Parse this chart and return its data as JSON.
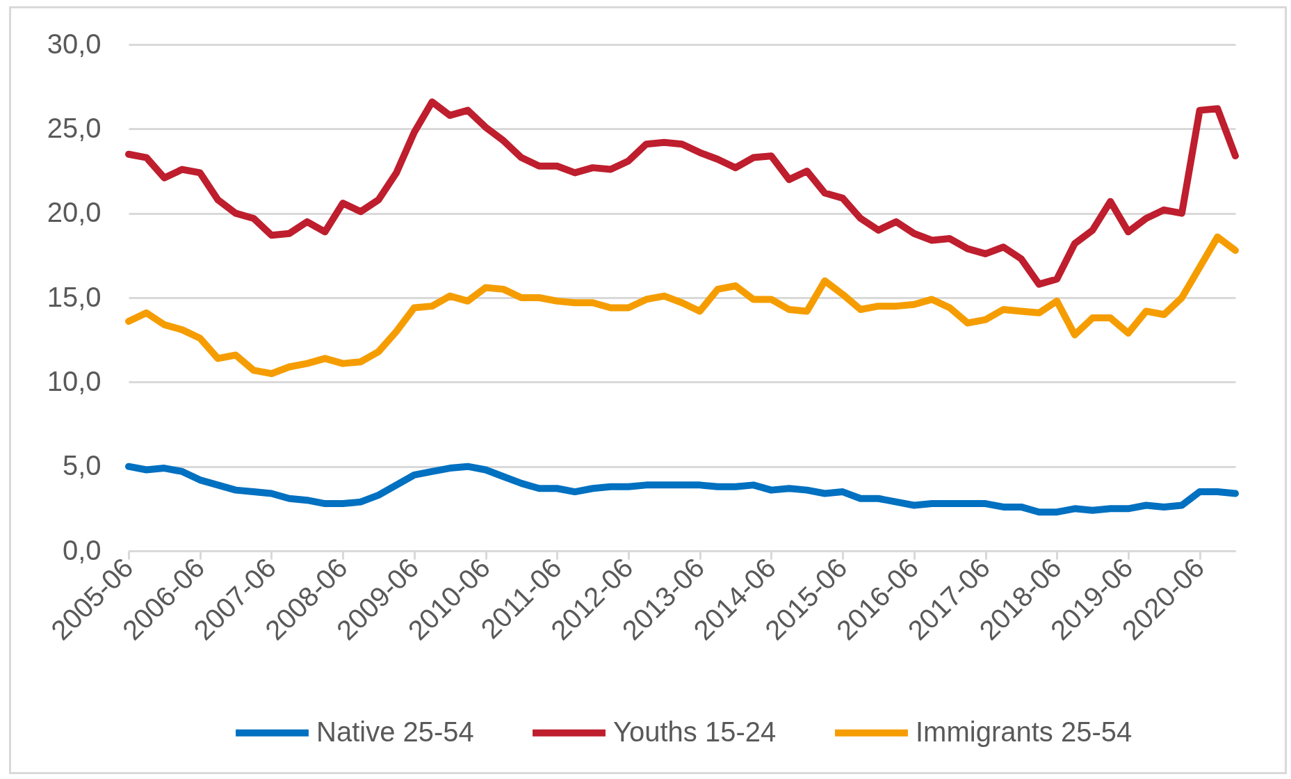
{
  "chart_data": {
    "type": "line",
    "categories": [
      "2005-06",
      null,
      null,
      null,
      "2006-06",
      null,
      null,
      null,
      "2007-06",
      null,
      null,
      null,
      "2008-06",
      null,
      null,
      null,
      "2009-06",
      null,
      null,
      null,
      "2010-06",
      null,
      null,
      null,
      "2011-06",
      null,
      null,
      null,
      "2012-06",
      null,
      null,
      null,
      "2013-06",
      null,
      null,
      null,
      "2014-06",
      null,
      null,
      null,
      "2015-06",
      null,
      null,
      null,
      "2016-06",
      null,
      null,
      null,
      "2017-06",
      null,
      null,
      null,
      "2018-06",
      null,
      null,
      null,
      "2019-06",
      null,
      null,
      null,
      "2020-06",
      null,
      null
    ],
    "series": [
      {
        "name": "Native 25-54",
        "color": "#0070c0",
        "values": [
          5.0,
          4.8,
          4.9,
          4.7,
          4.2,
          3.9,
          3.6,
          3.5,
          3.4,
          3.1,
          3.0,
          2.8,
          2.8,
          2.9,
          3.3,
          3.9,
          4.5,
          4.7,
          4.9,
          5.0,
          4.8,
          4.4,
          4.0,
          3.7,
          3.7,
          3.5,
          3.7,
          3.8,
          3.8,
          3.9,
          3.9,
          3.9,
          3.9,
          3.8,
          3.8,
          3.9,
          3.6,
          3.7,
          3.6,
          3.4,
          3.5,
          3.1,
          3.1,
          2.9,
          2.7,
          2.8,
          2.8,
          2.8,
          2.8,
          2.6,
          2.6,
          2.3,
          2.3,
          2.5,
          2.4,
          2.5,
          2.5,
          2.7,
          2.6,
          2.7,
          3.5,
          3.5,
          3.4
        ]
      },
      {
        "name": "Youths 15-24",
        "color": "#be1e2d",
        "values": [
          23.5,
          23.3,
          22.1,
          22.6,
          22.4,
          20.8,
          20.0,
          19.7,
          18.7,
          18.8,
          19.5,
          18.9,
          20.6,
          20.1,
          20.8,
          22.4,
          24.8,
          26.6,
          25.8,
          26.1,
          25.1,
          24.3,
          23.3,
          22.8,
          22.8,
          22.4,
          22.7,
          22.6,
          23.1,
          24.1,
          24.2,
          24.1,
          23.6,
          23.2,
          22.7,
          23.3,
          23.4,
          22.0,
          22.5,
          21.2,
          20.9,
          19.7,
          19.0,
          19.5,
          18.8,
          18.4,
          18.5,
          17.9,
          17.6,
          18.0,
          17.3,
          15.8,
          16.1,
          18.2,
          19.0,
          20.7,
          18.9,
          19.7,
          20.2,
          20.0,
          26.1,
          26.2,
          23.4
        ]
      },
      {
        "name": "Immigrants 25-54",
        "color": "#f59d00",
        "values": [
          13.6,
          14.1,
          13.4,
          13.1,
          12.6,
          11.4,
          11.6,
          10.7,
          10.5,
          10.9,
          11.1,
          11.4,
          11.1,
          11.2,
          11.8,
          13.0,
          14.4,
          14.5,
          15.1,
          14.8,
          15.6,
          15.5,
          15.0,
          15.0,
          14.8,
          14.7,
          14.7,
          14.4,
          14.4,
          14.9,
          15.1,
          14.7,
          14.2,
          15.5,
          15.7,
          14.9,
          14.9,
          14.3,
          14.2,
          16.0,
          15.2,
          14.3,
          14.5,
          14.5,
          14.6,
          14.9,
          14.4,
          13.5,
          13.7,
          14.3,
          14.2,
          14.1,
          14.8,
          12.8,
          13.8,
          13.8,
          12.9,
          14.2,
          14.0,
          15.0,
          16.8,
          18.6,
          17.8
        ]
      }
    ],
    "ylim": [
      0,
      30
    ],
    "yticks": [
      {
        "value": 0,
        "label": "0,0"
      },
      {
        "value": 5,
        "label": "5,0"
      },
      {
        "value": 10,
        "label": "10,0"
      },
      {
        "value": 15,
        "label": "15,0"
      },
      {
        "value": 20,
        "label": "20,0"
      },
      {
        "value": 25,
        "label": "25,0"
      },
      {
        "value": 30,
        "label": "30,0"
      }
    ],
    "grid": "y",
    "legend": "bottom",
    "line_style": "solid"
  }
}
